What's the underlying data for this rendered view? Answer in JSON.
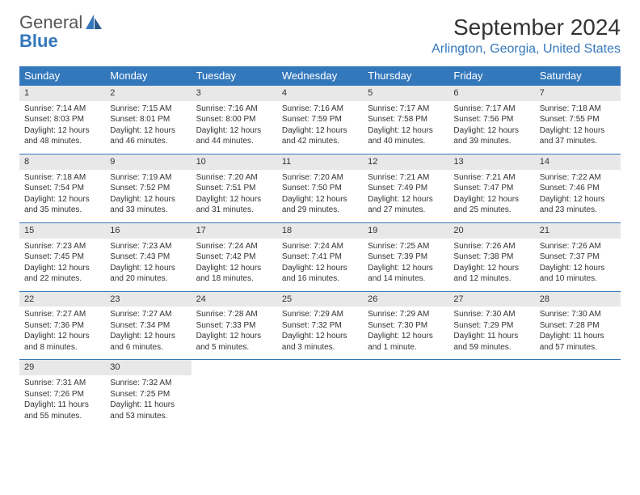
{
  "brand": {
    "general": "General",
    "blue": "Blue"
  },
  "title": "September 2024",
  "location": "Arlington, Georgia, United States",
  "colors": {
    "header_bg": "#3478bc",
    "header_text": "#ffffff",
    "daynum_bg": "#e8e8e8",
    "week_border": "#3478bc",
    "text": "#333333",
    "logo_gray": "#555555",
    "logo_blue": "#3478bc"
  },
  "fonts": {
    "title_size": 28,
    "location_size": 16,
    "dayhead_size": 13,
    "daynum_size": 11,
    "body_size": 10
  },
  "day_headers": [
    "Sunday",
    "Monday",
    "Tuesday",
    "Wednesday",
    "Thursday",
    "Friday",
    "Saturday"
  ],
  "weeks": [
    [
      {
        "num": "1",
        "sunrise": "Sunrise: 7:14 AM",
        "sunset": "Sunset: 8:03 PM",
        "daylight": "Daylight: 12 hours and 48 minutes."
      },
      {
        "num": "2",
        "sunrise": "Sunrise: 7:15 AM",
        "sunset": "Sunset: 8:01 PM",
        "daylight": "Daylight: 12 hours and 46 minutes."
      },
      {
        "num": "3",
        "sunrise": "Sunrise: 7:16 AM",
        "sunset": "Sunset: 8:00 PM",
        "daylight": "Daylight: 12 hours and 44 minutes."
      },
      {
        "num": "4",
        "sunrise": "Sunrise: 7:16 AM",
        "sunset": "Sunset: 7:59 PM",
        "daylight": "Daylight: 12 hours and 42 minutes."
      },
      {
        "num": "5",
        "sunrise": "Sunrise: 7:17 AM",
        "sunset": "Sunset: 7:58 PM",
        "daylight": "Daylight: 12 hours and 40 minutes."
      },
      {
        "num": "6",
        "sunrise": "Sunrise: 7:17 AM",
        "sunset": "Sunset: 7:56 PM",
        "daylight": "Daylight: 12 hours and 39 minutes."
      },
      {
        "num": "7",
        "sunrise": "Sunrise: 7:18 AM",
        "sunset": "Sunset: 7:55 PM",
        "daylight": "Daylight: 12 hours and 37 minutes."
      }
    ],
    [
      {
        "num": "8",
        "sunrise": "Sunrise: 7:18 AM",
        "sunset": "Sunset: 7:54 PM",
        "daylight": "Daylight: 12 hours and 35 minutes."
      },
      {
        "num": "9",
        "sunrise": "Sunrise: 7:19 AM",
        "sunset": "Sunset: 7:52 PM",
        "daylight": "Daylight: 12 hours and 33 minutes."
      },
      {
        "num": "10",
        "sunrise": "Sunrise: 7:20 AM",
        "sunset": "Sunset: 7:51 PM",
        "daylight": "Daylight: 12 hours and 31 minutes."
      },
      {
        "num": "11",
        "sunrise": "Sunrise: 7:20 AM",
        "sunset": "Sunset: 7:50 PM",
        "daylight": "Daylight: 12 hours and 29 minutes."
      },
      {
        "num": "12",
        "sunrise": "Sunrise: 7:21 AM",
        "sunset": "Sunset: 7:49 PM",
        "daylight": "Daylight: 12 hours and 27 minutes."
      },
      {
        "num": "13",
        "sunrise": "Sunrise: 7:21 AM",
        "sunset": "Sunset: 7:47 PM",
        "daylight": "Daylight: 12 hours and 25 minutes."
      },
      {
        "num": "14",
        "sunrise": "Sunrise: 7:22 AM",
        "sunset": "Sunset: 7:46 PM",
        "daylight": "Daylight: 12 hours and 23 minutes."
      }
    ],
    [
      {
        "num": "15",
        "sunrise": "Sunrise: 7:23 AM",
        "sunset": "Sunset: 7:45 PM",
        "daylight": "Daylight: 12 hours and 22 minutes."
      },
      {
        "num": "16",
        "sunrise": "Sunrise: 7:23 AM",
        "sunset": "Sunset: 7:43 PM",
        "daylight": "Daylight: 12 hours and 20 minutes."
      },
      {
        "num": "17",
        "sunrise": "Sunrise: 7:24 AM",
        "sunset": "Sunset: 7:42 PM",
        "daylight": "Daylight: 12 hours and 18 minutes."
      },
      {
        "num": "18",
        "sunrise": "Sunrise: 7:24 AM",
        "sunset": "Sunset: 7:41 PM",
        "daylight": "Daylight: 12 hours and 16 minutes."
      },
      {
        "num": "19",
        "sunrise": "Sunrise: 7:25 AM",
        "sunset": "Sunset: 7:39 PM",
        "daylight": "Daylight: 12 hours and 14 minutes."
      },
      {
        "num": "20",
        "sunrise": "Sunrise: 7:26 AM",
        "sunset": "Sunset: 7:38 PM",
        "daylight": "Daylight: 12 hours and 12 minutes."
      },
      {
        "num": "21",
        "sunrise": "Sunrise: 7:26 AM",
        "sunset": "Sunset: 7:37 PM",
        "daylight": "Daylight: 12 hours and 10 minutes."
      }
    ],
    [
      {
        "num": "22",
        "sunrise": "Sunrise: 7:27 AM",
        "sunset": "Sunset: 7:36 PM",
        "daylight": "Daylight: 12 hours and 8 minutes."
      },
      {
        "num": "23",
        "sunrise": "Sunrise: 7:27 AM",
        "sunset": "Sunset: 7:34 PM",
        "daylight": "Daylight: 12 hours and 6 minutes."
      },
      {
        "num": "24",
        "sunrise": "Sunrise: 7:28 AM",
        "sunset": "Sunset: 7:33 PM",
        "daylight": "Daylight: 12 hours and 5 minutes."
      },
      {
        "num": "25",
        "sunrise": "Sunrise: 7:29 AM",
        "sunset": "Sunset: 7:32 PM",
        "daylight": "Daylight: 12 hours and 3 minutes."
      },
      {
        "num": "26",
        "sunrise": "Sunrise: 7:29 AM",
        "sunset": "Sunset: 7:30 PM",
        "daylight": "Daylight: 12 hours and 1 minute."
      },
      {
        "num": "27",
        "sunrise": "Sunrise: 7:30 AM",
        "sunset": "Sunset: 7:29 PM",
        "daylight": "Daylight: 11 hours and 59 minutes."
      },
      {
        "num": "28",
        "sunrise": "Sunrise: 7:30 AM",
        "sunset": "Sunset: 7:28 PM",
        "daylight": "Daylight: 11 hours and 57 minutes."
      }
    ],
    [
      {
        "num": "29",
        "sunrise": "Sunrise: 7:31 AM",
        "sunset": "Sunset: 7:26 PM",
        "daylight": "Daylight: 11 hours and 55 minutes."
      },
      {
        "num": "30",
        "sunrise": "Sunrise: 7:32 AM",
        "sunset": "Sunset: 7:25 PM",
        "daylight": "Daylight: 11 hours and 53 minutes."
      },
      {
        "empty": true
      },
      {
        "empty": true
      },
      {
        "empty": true
      },
      {
        "empty": true
      },
      {
        "empty": true
      }
    ]
  ]
}
